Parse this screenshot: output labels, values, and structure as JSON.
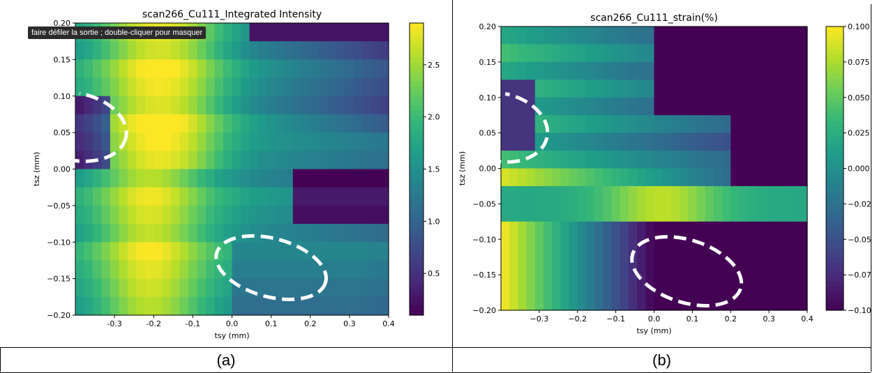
{
  "tooltip": "faire défiler la sortie ; double-cliquer pour masquer",
  "captions": [
    "(a)",
    "(b)"
  ],
  "colors": {
    "viridis": [
      "#440154",
      "#482878",
      "#3e4989",
      "#31688e",
      "#26828e",
      "#1f9e89",
      "#35b779",
      "#6ece58",
      "#b5de2b",
      "#fde725"
    ],
    "ellipse": "#ffffff"
  },
  "chart_data": [
    {
      "type": "heatmap",
      "title": "scan266_Cu111_Integrated Intensity",
      "xlabel": "tsy (mm)",
      "ylabel": "tsz (mm)",
      "xlim": [
        -0.4,
        0.4
      ],
      "ylim": [
        -0.2,
        0.2
      ],
      "xticks": [
        "-0.3",
        "-0.2",
        "-0.1",
        "0.0",
        "0.1",
        "0.2",
        "0.3",
        "0.4"
      ],
      "xtick_values": [
        -0.3,
        -0.2,
        -0.1,
        0.0,
        0.1,
        0.2,
        0.3,
        0.4
      ],
      "yticks": [
        "0.20",
        "0.15",
        "0.10",
        "0.05",
        "0.00",
        "−0.05",
        "−0.10",
        "−0.15",
        "−0.20"
      ],
      "ytick_values": [
        0.2,
        0.15,
        0.1,
        0.05,
        0.0,
        -0.05,
        -0.1,
        -0.15,
        -0.2
      ],
      "colorbar": {
        "range": [
          0.1,
          2.9
        ],
        "ticks": [
          "2.5",
          "2.0",
          "1.5",
          "1.0",
          "0.5"
        ],
        "tick_values": [
          2.5,
          2.0,
          1.5,
          1.0,
          0.5
        ]
      },
      "grid": {
        "nx": 32,
        "ny": 16,
        "x_range": [
          -0.4,
          0.4
        ],
        "y_range": [
          -0.2,
          0.2
        ],
        "cells": [
          {
            "x": -0.39,
            "y": 0.19,
            "v": 1.5
          },
          {
            "x": -0.36,
            "y": 0.19,
            "v": 1.5
          },
          {
            "x": -0.34,
            "y": 0.19,
            "v": 1.6
          },
          {
            "x": -0.31,
            "y": 0.19,
            "v": 1.7
          },
          {
            "x": -0.29,
            "y": 0.19,
            "v": 1.9
          },
          {
            "x": -0.26,
            "y": 0.19,
            "v": 2.2
          },
          {
            "x": -0.24,
            "y": 0.19,
            "v": 2.5
          },
          {
            "x": -0.21,
            "y": 0.19,
            "v": 2.6
          },
          {
            "x": -0.19,
            "y": 0.19,
            "v": 2.7
          },
          {
            "x": -0.16,
            "y": 0.19,
            "v": 2.4
          },
          {
            "x": -0.14,
            "y": 0.19,
            "v": 2.2
          },
          {
            "x": -0.11,
            "y": 0.19,
            "v": 2.1
          },
          {
            "x": -0.09,
            "y": 0.19,
            "v": 1.9
          },
          {
            "x": -0.06,
            "y": 0.19,
            "v": 1.7
          },
          {
            "x": -0.04,
            "y": 0.19,
            "v": 1.5
          },
          {
            "x": -0.01,
            "y": 0.19,
            "v": 1.2
          },
          {
            "x": 0.01,
            "y": 0.19,
            "v": 1.0
          },
          {
            "x": 0.04,
            "y": 0.19,
            "v": 0.8
          },
          {
            "x": 0.06,
            "y": 0.19,
            "v": 0.5
          },
          {
            "x": 0.09,
            "y": 0.19,
            "v": 0.4
          },
          {
            "x": 0.11,
            "y": 0.19,
            "v": 0.3
          },
          {
            "x": 0.14,
            "y": 0.19,
            "v": 0.3
          },
          {
            "x": 0.16,
            "y": 0.19,
            "v": 0.3
          },
          {
            "x": 0.19,
            "y": 0.19,
            "v": 0.25
          },
          {
            "x": 0.21,
            "y": 0.19,
            "v": 0.2
          },
          {
            "x": 0.24,
            "y": 0.19,
            "v": 0.2
          },
          {
            "x": 0.26,
            "y": 0.19,
            "v": 0.2
          },
          {
            "x": 0.29,
            "y": 0.19,
            "v": 0.2
          },
          {
            "x": 0.31,
            "y": 0.19,
            "v": 0.2
          },
          {
            "x": 0.34,
            "y": 0.19,
            "v": 0.2
          },
          {
            "x": 0.36,
            "y": 0.19,
            "v": 0.2
          },
          {
            "x": 0.39,
            "y": 0.19,
            "v": 0.2
          }
        ]
      }
    },
    {
      "type": "heatmap",
      "title": "scan266_Cu111_strain(%)",
      "xlabel": "tsy (mm)",
      "ylabel": "tsz (mm)",
      "xlim": [
        -0.4,
        0.4
      ],
      "ylim": [
        -0.2,
        0.2
      ],
      "xticks": [
        "−0.3",
        "−0.2",
        "−0.1",
        "0.0",
        "0.1",
        "0.2",
        "0.3",
        "0.4"
      ],
      "xtick_values": [
        -0.3,
        -0.2,
        -0.1,
        0.0,
        0.1,
        0.2,
        0.3,
        0.4
      ],
      "yticks": [
        "0.20",
        "0.15",
        "0.10",
        "0.05",
        "0.00",
        "−0.05",
        "−0.10",
        "−0.15",
        "−0.20"
      ],
      "ytick_values": [
        0.2,
        0.15,
        0.1,
        0.05,
        0.0,
        -0.05,
        -0.1,
        -0.15,
        -0.2
      ],
      "colorbar": {
        "range": [
          -0.1,
          0.1
        ],
        "ticks": [
          "0.100",
          "0.075",
          "0.050",
          "0.025",
          "0.000",
          "−0.025",
          "−0.050",
          "−0.075",
          "−0.100"
        ],
        "tick_values": [
          0.1,
          0.075,
          0.05,
          0.025,
          0.0,
          -0.025,
          -0.05,
          -0.075,
          -0.1
        ]
      }
    }
  ]
}
